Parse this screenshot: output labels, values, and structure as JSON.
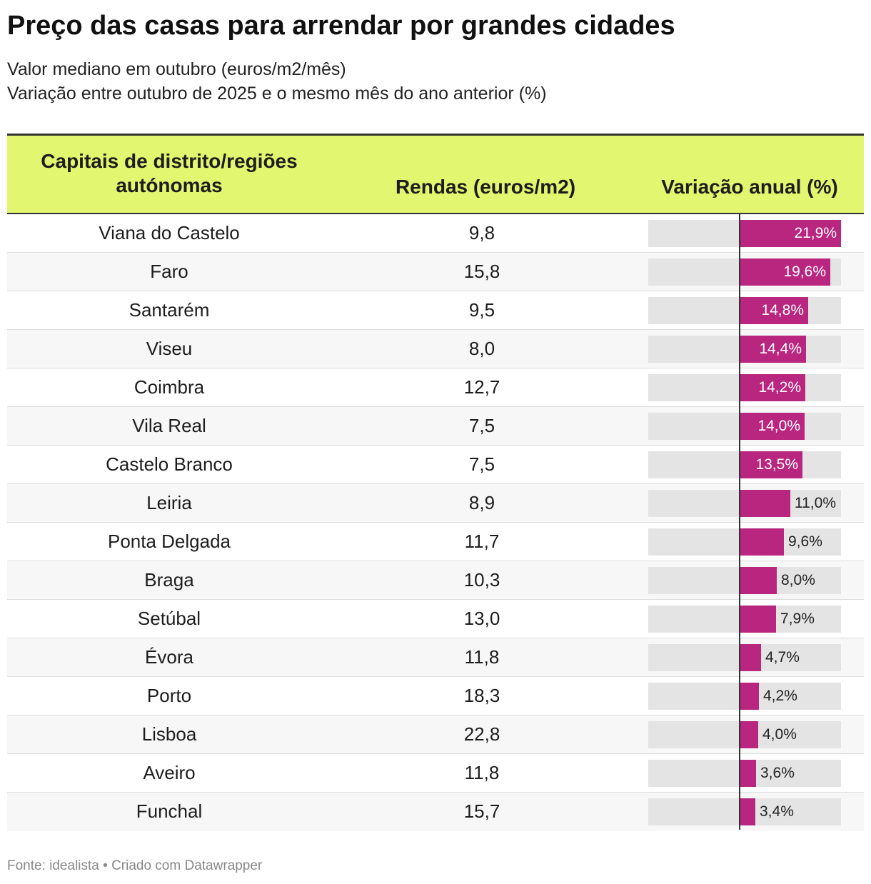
{
  "title": "Preço das casas para arrendar por grandes cidades",
  "subtitle_line1": "Valor mediano em outubro (euros/m2/mês)",
  "subtitle_line2": "Variação entre outubro de 2025 e o mesmo mês do ano anterior (%)",
  "headers": {
    "city": "Capitais de distrito/regiões autónomas",
    "rent": "Rendas (euros/m2)",
    "variation": "Variação anual (%)"
  },
  "footer": "Fonte: idealista • Criado com Datawrapper",
  "colors": {
    "header_bg": "#e2f66f",
    "bar": "#b8267f",
    "bar_track": "#e4e4e4"
  },
  "chart_data": {
    "type": "table",
    "title": "Preço das casas para arrendar por grandes cidades",
    "columns": [
      "Capitais de distrito/regiões autónomas",
      "Rendas (euros/m2)",
      "Variação anual (%)"
    ],
    "variation_max": 21.9,
    "rows": [
      {
        "city": "Viana do Castelo",
        "rent": "9,8",
        "variation": 21.9,
        "variation_label": "21,9%"
      },
      {
        "city": "Faro",
        "rent": "15,8",
        "variation": 19.6,
        "variation_label": "19,6%"
      },
      {
        "city": "Santarém",
        "rent": "9,5",
        "variation": 14.8,
        "variation_label": "14,8%"
      },
      {
        "city": "Viseu",
        "rent": "8,0",
        "variation": 14.4,
        "variation_label": "14,4%"
      },
      {
        "city": "Coimbra",
        "rent": "12,7",
        "variation": 14.2,
        "variation_label": "14,2%"
      },
      {
        "city": "Vila Real",
        "rent": "7,5",
        "variation": 14.0,
        "variation_label": "14,0%"
      },
      {
        "city": "Castelo Branco",
        "rent": "7,5",
        "variation": 13.5,
        "variation_label": "13,5%"
      },
      {
        "city": "Leiria",
        "rent": "8,9",
        "variation": 11.0,
        "variation_label": "11,0%"
      },
      {
        "city": "Ponta Delgada",
        "rent": "11,7",
        "variation": 9.6,
        "variation_label": "9,6%"
      },
      {
        "city": "Braga",
        "rent": "10,3",
        "variation": 8.0,
        "variation_label": "8,0%"
      },
      {
        "city": "Setúbal",
        "rent": "13,0",
        "variation": 7.9,
        "variation_label": "7,9%"
      },
      {
        "city": "Évora",
        "rent": "11,8",
        "variation": 4.7,
        "variation_label": "4,7%"
      },
      {
        "city": "Porto",
        "rent": "18,3",
        "variation": 4.2,
        "variation_label": "4,2%"
      },
      {
        "city": "Lisboa",
        "rent": "22,8",
        "variation": 4.0,
        "variation_label": "4,0%"
      },
      {
        "city": "Aveiro",
        "rent": "11,8",
        "variation": 3.6,
        "variation_label": "3,6%"
      },
      {
        "city": "Funchal",
        "rent": "15,7",
        "variation": 3.4,
        "variation_label": "3,4%"
      }
    ]
  }
}
